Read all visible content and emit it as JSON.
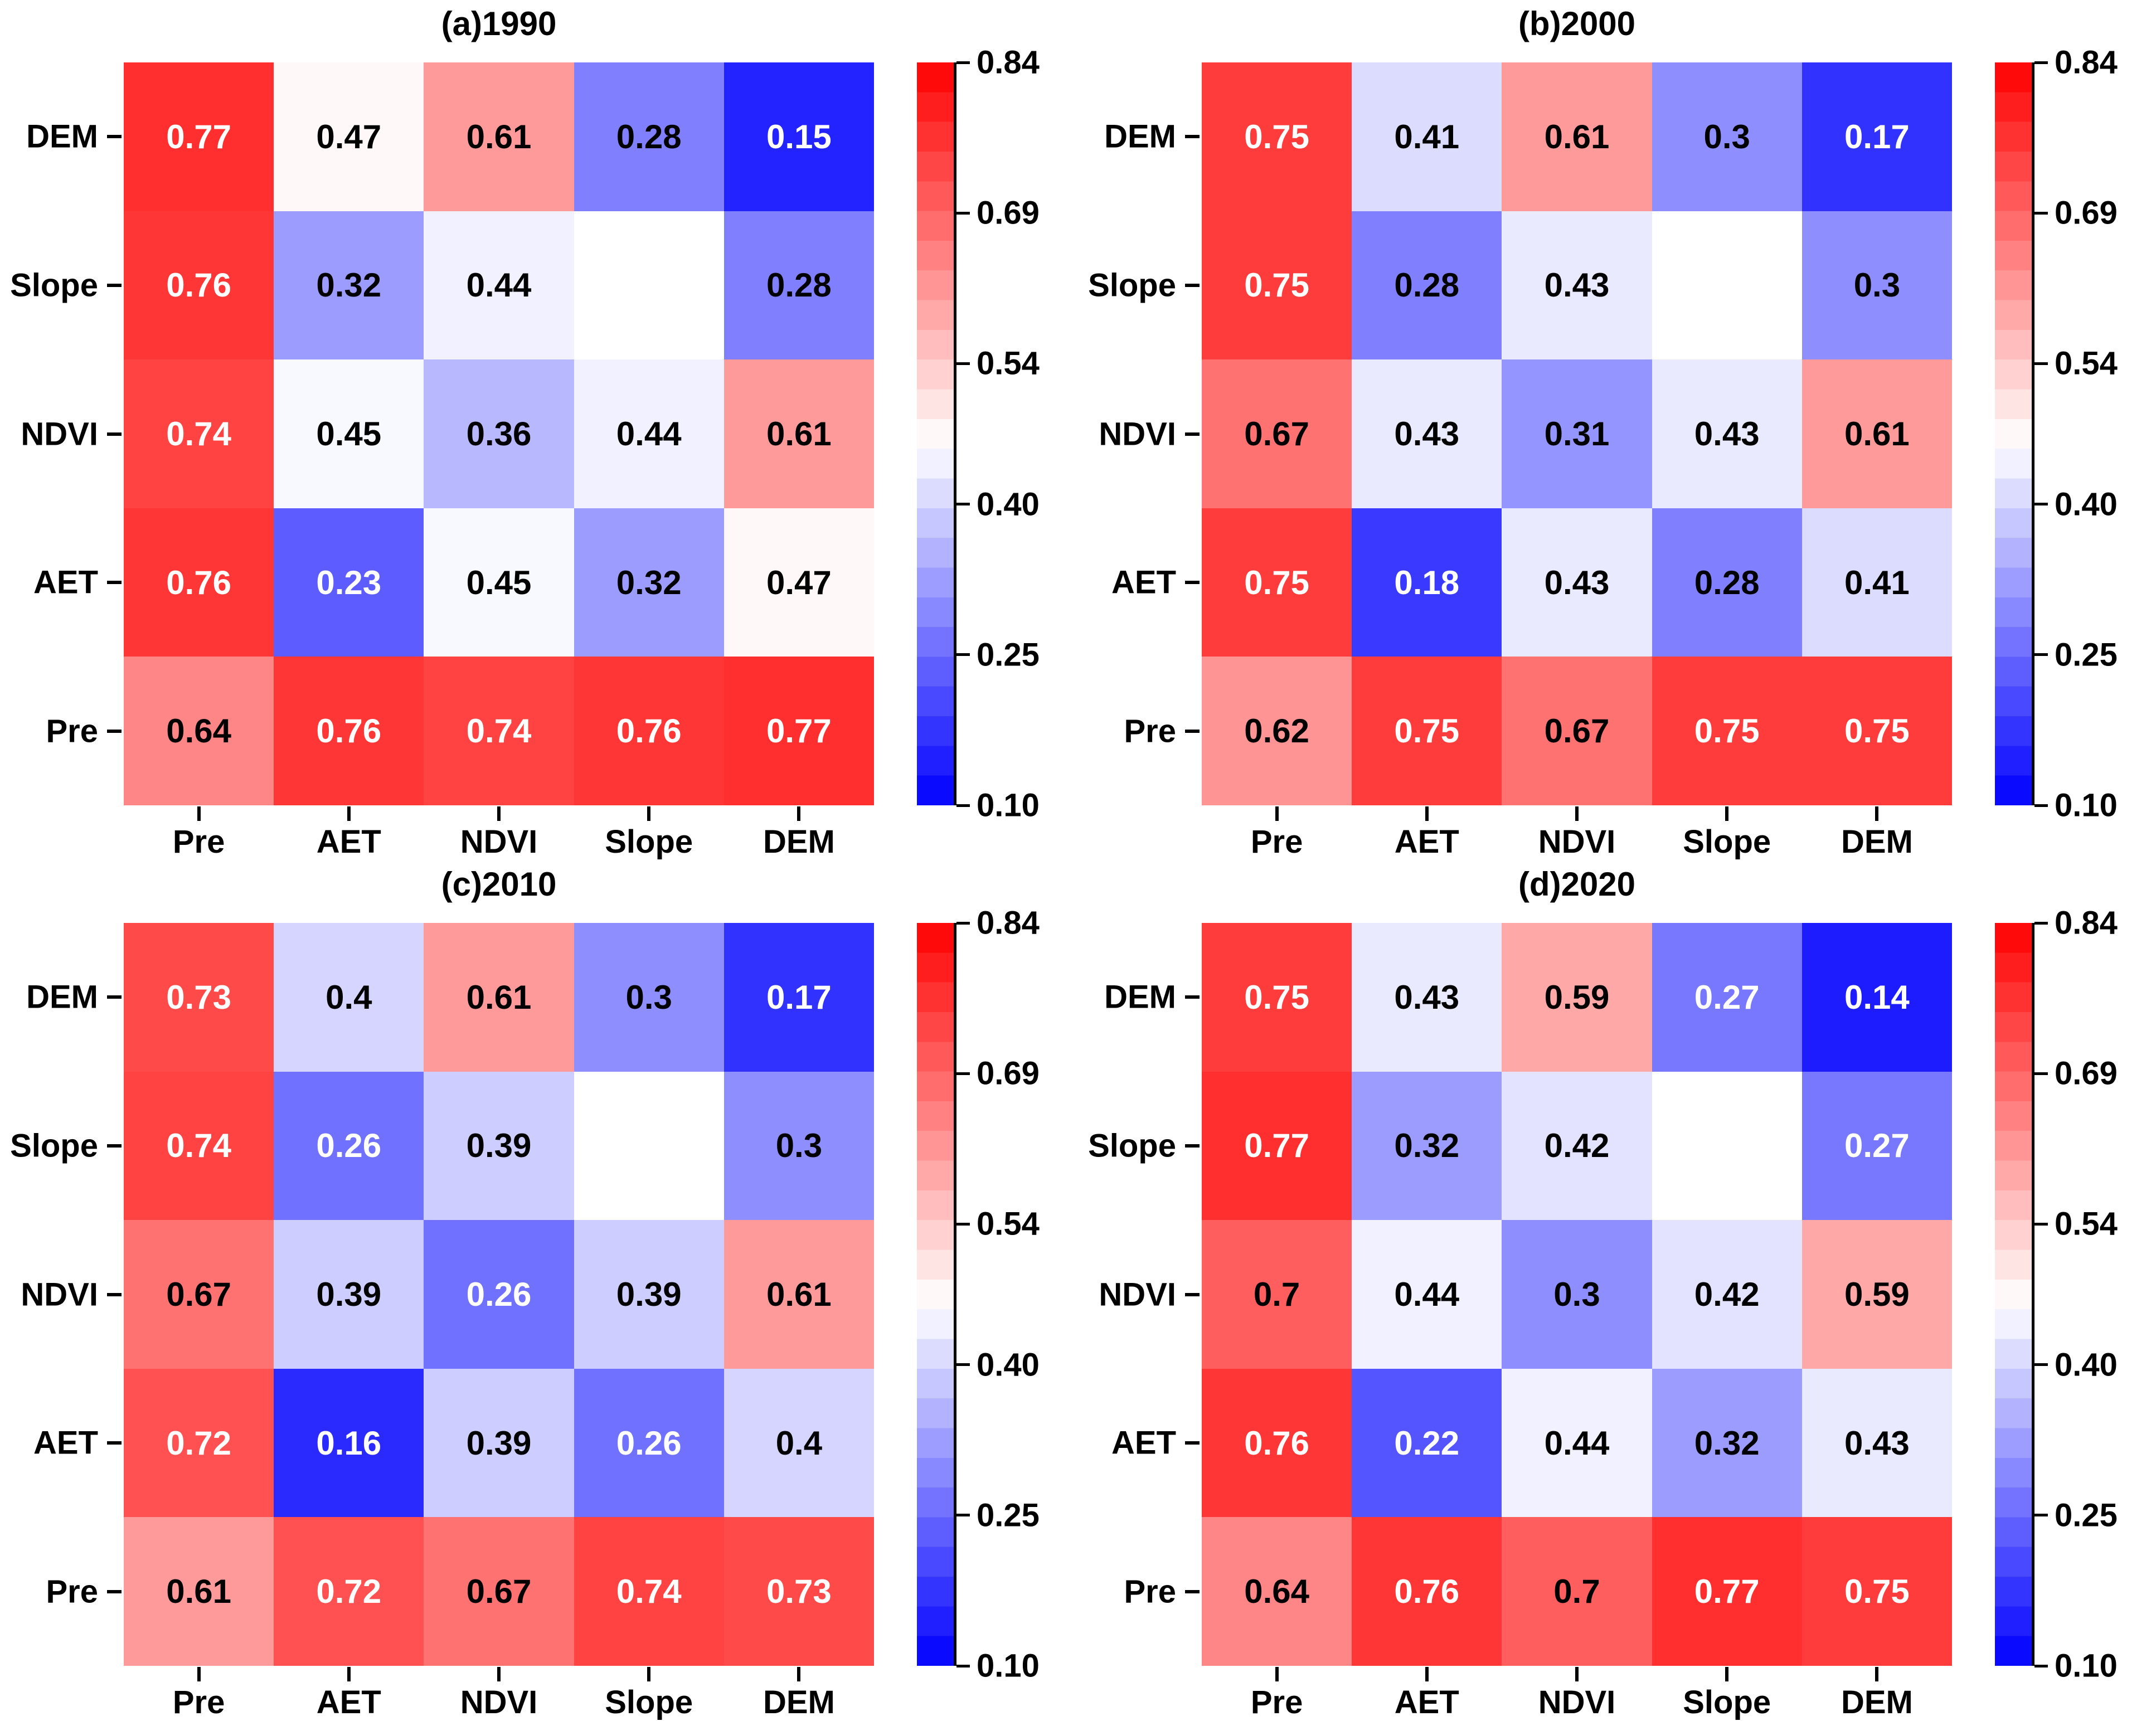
{
  "row_labels": [
    "DEM",
    "Slope",
    "NDVI",
    "AET",
    "Pre"
  ],
  "col_labels": [
    "Pre",
    "AET",
    "NDVI",
    "Slope",
    "DEM"
  ],
  "colorbar": {
    "tick_labels": [
      "0.84",
      "0.69",
      "0.54",
      "0.40",
      "0.25",
      "0.10"
    ],
    "range": [
      0.1,
      0.84
    ],
    "low_color": "#0000ff",
    "mid_color": "#ffffff",
    "high_color": "#ff0000",
    "steps": 25
  },
  "chart_data": [
    {
      "type": "heatmap",
      "title": "(a)1990",
      "rows": [
        "DEM",
        "Slope",
        "NDVI",
        "AET",
        "Pre"
      ],
      "columns": [
        "Pre",
        "AET",
        "NDVI",
        "Slope",
        "DEM"
      ],
      "values": [
        [
          0.77,
          0.47,
          0.61,
          0.28,
          0.15
        ],
        [
          0.76,
          0.32,
          0.44,
          null,
          0.28
        ],
        [
          0.74,
          0.45,
          0.36,
          0.44,
          0.61
        ],
        [
          0.76,
          0.23,
          0.45,
          0.32,
          0.47
        ],
        [
          0.64,
          0.76,
          0.74,
          0.76,
          0.77
        ]
      ],
      "colorbar_ticks": [
        0.84,
        0.69,
        0.54,
        0.4,
        0.25,
        0.1
      ],
      "colorbar_range": [
        0.1,
        0.84
      ],
      "colormap": "blue-white-red",
      "legend_position": "right"
    },
    {
      "type": "heatmap",
      "title": "(b)2000",
      "rows": [
        "DEM",
        "Slope",
        "NDVI",
        "AET",
        "Pre"
      ],
      "columns": [
        "Pre",
        "AET",
        "NDVI",
        "Slope",
        "DEM"
      ],
      "values": [
        [
          0.75,
          0.41,
          0.61,
          0.3,
          0.17
        ],
        [
          0.75,
          0.28,
          0.43,
          null,
          0.3
        ],
        [
          0.67,
          0.43,
          0.31,
          0.43,
          0.61
        ],
        [
          0.75,
          0.18,
          0.43,
          0.28,
          0.41
        ],
        [
          0.62,
          0.75,
          0.67,
          0.75,
          0.75
        ]
      ],
      "colorbar_ticks": [
        0.84,
        0.69,
        0.54,
        0.4,
        0.25,
        0.1
      ],
      "colorbar_range": [
        0.1,
        0.84
      ],
      "colormap": "blue-white-red",
      "legend_position": "right"
    },
    {
      "type": "heatmap",
      "title": "(c)2010",
      "rows": [
        "DEM",
        "Slope",
        "NDVI",
        "AET",
        "Pre"
      ],
      "columns": [
        "Pre",
        "AET",
        "NDVI",
        "Slope",
        "DEM"
      ],
      "values": [
        [
          0.73,
          0.4,
          0.61,
          0.3,
          0.17
        ],
        [
          0.74,
          0.26,
          0.39,
          null,
          0.3
        ],
        [
          0.67,
          0.39,
          0.26,
          0.39,
          0.61
        ],
        [
          0.72,
          0.16,
          0.39,
          0.26,
          0.4
        ],
        [
          0.61,
          0.72,
          0.67,
          0.74,
          0.73
        ]
      ],
      "colorbar_ticks": [
        0.84,
        0.69,
        0.54,
        0.4,
        0.25,
        0.1
      ],
      "colorbar_range": [
        0.1,
        0.84
      ],
      "colormap": "blue-white-red",
      "legend_position": "right"
    },
    {
      "type": "heatmap",
      "title": "(d)2020",
      "rows": [
        "DEM",
        "Slope",
        "NDVI",
        "AET",
        "Pre"
      ],
      "columns": [
        "Pre",
        "AET",
        "NDVI",
        "Slope",
        "DEM"
      ],
      "values": [
        [
          0.75,
          0.43,
          0.59,
          0.27,
          0.14
        ],
        [
          0.77,
          0.32,
          0.42,
          null,
          0.27
        ],
        [
          0.7,
          0.44,
          0.3,
          0.42,
          0.59
        ],
        [
          0.76,
          0.22,
          0.44,
          0.32,
          0.43
        ],
        [
          0.64,
          0.76,
          0.7,
          0.77,
          0.75
        ]
      ],
      "colorbar_ticks": [
        0.84,
        0.69,
        0.54,
        0.4,
        0.25,
        0.1
      ],
      "colorbar_range": [
        0.1,
        0.84
      ],
      "colormap": "blue-white-red",
      "legend_position": "right"
    }
  ]
}
